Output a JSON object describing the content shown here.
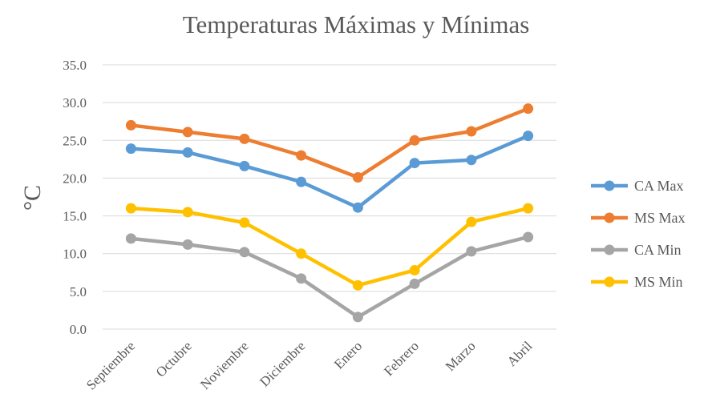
{
  "chart_data": {
    "type": "line",
    "title": "Temperaturas  Máximas y Mínimas",
    "xlabel": "",
    "ylabel": "°C",
    "ylim": [
      0,
      35
    ],
    "yticks": [
      "0.0",
      "5.0",
      "10.0",
      "15.0",
      "20.0",
      "25.0",
      "30.0",
      "35.0"
    ],
    "grid": true,
    "legend": "right",
    "categories": [
      "Septiembre",
      "Octubre",
      "Noviembre",
      "Diciembre",
      "Enero",
      "Febrero",
      "Marzo",
      "Abril"
    ],
    "series": [
      {
        "name": "CA Max",
        "color": "#5b9bd5",
        "values": [
          23.9,
          23.4,
          21.6,
          19.5,
          16.1,
          22.0,
          22.4,
          25.6
        ]
      },
      {
        "name": "MS Max",
        "color": "#ed7d31",
        "values": [
          27.0,
          26.1,
          25.2,
          23.0,
          20.1,
          25.0,
          26.2,
          29.2
        ]
      },
      {
        "name": "CA Min",
        "color": "#a5a5a5",
        "values": [
          12.0,
          11.2,
          10.2,
          6.7,
          1.6,
          6.0,
          10.3,
          12.2
        ]
      },
      {
        "name": "MS Min",
        "color": "#ffc000",
        "values": [
          16.0,
          15.5,
          14.1,
          10.0,
          5.8,
          7.8,
          14.2,
          16.0
        ]
      }
    ]
  }
}
